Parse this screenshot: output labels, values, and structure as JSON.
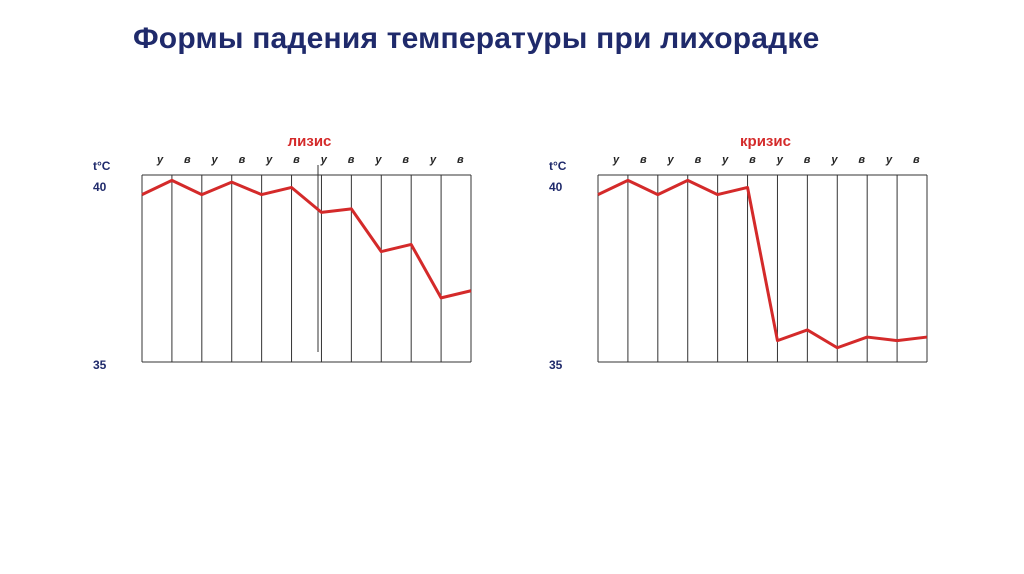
{
  "title": "Формы падения температуры при лихорадке",
  "chart_data": [
    {
      "type": "line",
      "title": "лизис",
      "y_label": "t°C",
      "categories": [
        "у",
        "в",
        "у",
        "в",
        "у",
        "в",
        "у",
        "в",
        "у",
        "в",
        "у",
        "в"
      ],
      "values": [
        39.7,
        40.1,
        39.7,
        40.05,
        39.7,
        39.9,
        39.2,
        39.3,
        38.1,
        38.3,
        36.8,
        37.0
      ],
      "color": "#d42a2a",
      "ylim": [
        35,
        40.25
      ],
      "yticks": [
        40,
        35
      ],
      "grid": true
    },
    {
      "type": "line",
      "title": "кризис",
      "y_label": "t°C",
      "categories": [
        "у",
        "в",
        "у",
        "в",
        "у",
        "в",
        "у",
        "в",
        "у",
        "в",
        "у",
        "в"
      ],
      "values": [
        39.7,
        40.1,
        39.7,
        40.1,
        39.7,
        39.9,
        35.6,
        35.9,
        35.4,
        35.7,
        35.6,
        35.7
      ],
      "color": "#d42a2a",
      "ylim": [
        35,
        40.25
      ],
      "yticks": [
        40,
        35
      ],
      "grid": true
    }
  ]
}
